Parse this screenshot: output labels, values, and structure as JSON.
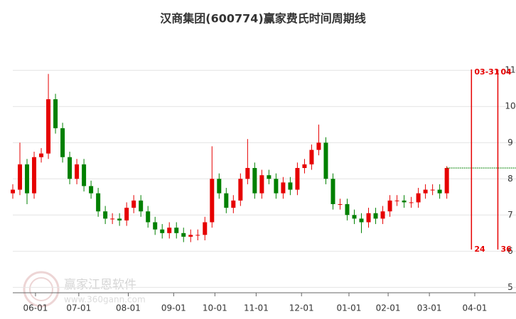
{
  "chart_data": {
    "type": "candlestick",
    "title": "汉商集团(600774)赢家费氏时间周期线",
    "up_color": "#e60000",
    "down_color": "#008000",
    "grid": true,
    "ylim": [
      4.85,
      11.2
    ],
    "yticks": [
      5,
      6,
      7,
      8,
      9,
      10,
      11
    ],
    "xlim": [
      0,
      244
    ],
    "xticks": [
      {
        "value": 11,
        "label": "06-01"
      },
      {
        "value": 32,
        "label": "07-01"
      },
      {
        "value": 56,
        "label": "08-01"
      },
      {
        "value": 78,
        "label": "09-01"
      },
      {
        "value": 98,
        "label": "10-01"
      },
      {
        "value": 118,
        "label": "11-01"
      },
      {
        "value": 140,
        "label": "12-01"
      },
      {
        "value": 163,
        "label": "01-01"
      },
      {
        "value": 182,
        "label": "02-01"
      },
      {
        "value": 202,
        "label": "03-01"
      },
      {
        "value": 224,
        "label": "04-01"
      }
    ],
    "x": [
      0,
      3.45,
      6.9,
      10.35,
      13.8,
      17.25,
      20.7,
      24.15,
      27.6,
      31.05,
      34.5,
      37.95,
      41.4,
      44.85,
      48.3,
      51.75,
      55.2,
      58.65,
      62.1,
      65.55,
      69,
      72.45,
      75.9,
      79.35,
      82.8,
      86.25,
      89.7,
      93.15,
      96.6,
      100.05,
      103.5,
      106.95,
      110.4,
      113.85,
      117.3,
      120.75,
      124.2,
      127.65,
      131.1,
      134.55,
      138,
      141.45,
      144.9,
      148.35,
      151.8,
      155.25,
      158.7,
      162.15,
      165.6,
      169.05,
      172.5,
      175.95,
      179.4,
      182.85,
      186.3,
      189.75,
      193.2,
      196.65,
      200.1,
      203.55,
      207,
      210.45
    ],
    "series": [
      {
        "open": [
          7.6,
          7.7,
          8.4,
          7.6,
          8.6,
          8.7,
          10.2,
          9.4,
          8.6,
          8.0,
          8.4,
          7.8,
          7.6,
          7.1,
          6.9,
          6.9,
          6.85,
          7.2,
          7.4,
          7.1,
          6.8,
          6.6,
          6.5,
          6.65,
          6.5,
          6.4,
          6.45,
          6.45,
          6.8,
          8.0,
          7.6,
          7.2,
          7.4,
          8.0,
          8.3,
          7.6,
          8.1,
          8.0,
          7.6,
          7.9,
          7.7,
          8.3,
          8.4,
          8.8,
          9.0,
          8.0,
          7.3,
          7.3,
          7.0,
          6.9,
          6.8,
          7.05,
          6.9,
          7.1,
          7.4,
          7.4,
          7.35,
          7.35,
          7.6,
          7.7,
          7.7,
          7.6
        ],
        "high": [
          7.85,
          9.0,
          8.55,
          8.75,
          8.85,
          10.9,
          10.35,
          9.55,
          8.75,
          8.55,
          8.55,
          7.95,
          7.75,
          7.25,
          7.05,
          7.05,
          7.35,
          7.55,
          7.55,
          7.25,
          6.95,
          6.75,
          6.8,
          6.8,
          6.65,
          6.6,
          6.6,
          6.95,
          8.9,
          8.15,
          7.75,
          7.55,
          8.15,
          9.1,
          8.45,
          8.25,
          8.25,
          8.15,
          8.05,
          8.05,
          8.45,
          8.55,
          8.95,
          9.5,
          9.15,
          8.15,
          7.45,
          7.45,
          7.15,
          7.05,
          7.2,
          7.2,
          7.25,
          7.55,
          7.55,
          7.55,
          7.5,
          7.75,
          7.85,
          7.85,
          7.85,
          8.35
        ],
        "low": [
          7.45,
          7.55,
          7.3,
          7.45,
          8.45,
          8.55,
          9.25,
          8.45,
          7.85,
          7.85,
          7.65,
          7.45,
          6.95,
          6.75,
          6.75,
          6.7,
          6.7,
          7.05,
          6.95,
          6.65,
          6.45,
          6.35,
          6.35,
          6.35,
          6.25,
          6.25,
          6.3,
          6.3,
          6.65,
          7.45,
          7.05,
          7.05,
          7.25,
          7.85,
          7.45,
          7.45,
          7.85,
          7.45,
          7.45,
          7.55,
          7.55,
          8.15,
          8.25,
          8.65,
          7.85,
          7.15,
          7.15,
          6.85,
          6.75,
          6.5,
          6.65,
          6.75,
          6.75,
          6.95,
          7.25,
          7.2,
          7.2,
          7.2,
          7.45,
          7.55,
          7.45,
          7.45
        ],
        "close": [
          7.7,
          8.4,
          7.6,
          8.6,
          8.7,
          10.2,
          9.4,
          8.6,
          8.0,
          8.4,
          7.8,
          7.6,
          7.1,
          6.9,
          6.9,
          6.85,
          7.2,
          7.4,
          7.1,
          6.8,
          6.6,
          6.5,
          6.65,
          6.5,
          6.4,
          6.45,
          6.45,
          6.8,
          8.0,
          7.6,
          7.2,
          7.4,
          8.0,
          8.3,
          7.6,
          8.1,
          8.0,
          7.6,
          7.9,
          7.7,
          8.3,
          8.4,
          8.8,
          9.0,
          8.0,
          7.3,
          7.3,
          7.0,
          6.9,
          6.8,
          7.05,
          6.9,
          7.1,
          7.4,
          7.4,
          7.35,
          7.35,
          7.6,
          7.7,
          7.7,
          7.6,
          8.3
        ]
      }
    ],
    "reference_line": 8.3,
    "cycle_lines": [
      {
        "x": 222.4,
        "label": "03-31",
        "count": 24
      },
      {
        "x": 235.2,
        "label": "04",
        "count": 36
      }
    ],
    "watermark": {
      "name": "赢家江恩软件",
      "url": "www.360gann.com"
    }
  }
}
